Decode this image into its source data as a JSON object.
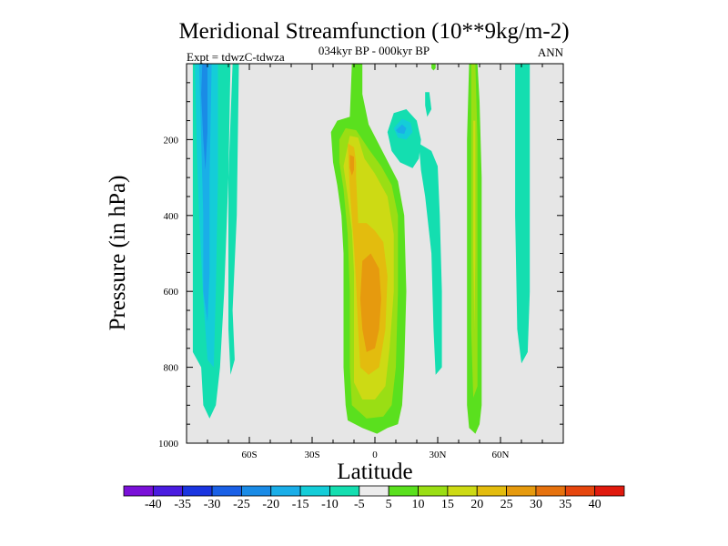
{
  "chart_data": {
    "type": "heatmap",
    "title": "Meridional Streamfunction (10**9kg/m-2)",
    "subtitle": "034kyr BP - 000kyr BP",
    "left_label": "Expt = tdwzC-tdwza",
    "right_label": "ANN",
    "xlabel": "Latitude",
    "ylabel": "Pressure (in hPa)",
    "xlim": [
      -90,
      90
    ],
    "ylim": [
      0,
      1000
    ],
    "x_ticks": [
      {
        "value": -60,
        "label": "60S"
      },
      {
        "value": -30,
        "label": "30S"
      },
      {
        "value": 0,
        "label": "0"
      },
      {
        "value": 30,
        "label": "30N"
      },
      {
        "value": 60,
        "label": "60N"
      }
    ],
    "y_ticks": [
      {
        "value": 200,
        "label": "200"
      },
      {
        "value": 400,
        "label": "400"
      },
      {
        "value": 600,
        "label": "600"
      },
      {
        "value": 800,
        "label": "800"
      },
      {
        "value": 1000,
        "label": "1000"
      }
    ],
    "background_color": "#e6e6e6",
    "colorbar": {
      "labels": [
        "-40",
        "-35",
        "-30",
        "-25",
        "-20",
        "-15",
        "-10",
        "-5",
        "5",
        "10",
        "15",
        "20",
        "25",
        "30",
        "35",
        "40"
      ],
      "colors": [
        "#7a10d8",
        "#4a1ce0",
        "#1a35e0",
        "#1a60e6",
        "#1a8be6",
        "#1aaee8",
        "#14cdd8",
        "#14deb0",
        "#ececec",
        "#5ae01e",
        "#9ade14",
        "#cdda14",
        "#e3bc0e",
        "#e69a0e",
        "#e6720e",
        "#e6460e",
        "#e01a0e"
      ]
    },
    "regions": [
      {
        "name": "sh-polar-cell-outer",
        "level": "-10",
        "color": "#14deb0",
        "points": [
          [
            -87,
            0
          ],
          [
            -69,
            0
          ],
          [
            -70,
            300
          ],
          [
            -72,
            600
          ],
          [
            -74,
            800
          ],
          [
            -76,
            900
          ],
          [
            -79,
            935
          ],
          [
            -82,
            900
          ],
          [
            -83,
            800
          ],
          [
            -87,
            760
          ]
        ]
      },
      {
        "name": "sh-polar-cell-mid",
        "level": "-15",
        "color": "#14cdd8",
        "points": [
          [
            -86,
            0
          ],
          [
            -75,
            0
          ],
          [
            -75,
            300
          ],
          [
            -76,
            600
          ],
          [
            -77,
            800
          ],
          [
            -80,
            780
          ],
          [
            -82,
            620
          ],
          [
            -84,
            400
          ],
          [
            -85,
            250
          ]
        ]
      },
      {
        "name": "sh-polar-cell-inner",
        "level": "-20",
        "color": "#1aaee8",
        "points": [
          [
            -84,
            0
          ],
          [
            -78,
            0
          ],
          [
            -79,
            300
          ],
          [
            -79,
            550
          ],
          [
            -80,
            680
          ],
          [
            -82,
            600
          ],
          [
            -82,
            400
          ],
          [
            -83,
            200
          ]
        ]
      },
      {
        "name": "sh-polar-cell-core",
        "level": "-25",
        "color": "#1a8be6",
        "points": [
          [
            -82.5,
            0
          ],
          [
            -80,
            0
          ],
          [
            -80,
            180
          ],
          [
            -81,
            280
          ],
          [
            -82,
            200
          ],
          [
            -83,
            80
          ]
        ]
      },
      {
        "name": "sh-strip",
        "level": "-10",
        "color": "#14deb0",
        "points": [
          [
            -68,
            0
          ],
          [
            -65,
            0
          ],
          [
            -66,
            400
          ],
          [
            -68,
            650
          ],
          [
            -67,
            780
          ],
          [
            -69,
            820
          ],
          [
            -70,
            700
          ],
          [
            -70,
            300
          ]
        ]
      },
      {
        "name": "tropical-cell-outer",
        "level": "5",
        "color": "#5ae01e",
        "points": [
          [
            -11,
            0
          ],
          [
            -6,
            0
          ],
          [
            -6,
            80
          ],
          [
            -3,
            160
          ],
          [
            4,
            235
          ],
          [
            11,
            310
          ],
          [
            14,
            400
          ],
          [
            15,
            600
          ],
          [
            14,
            800
          ],
          [
            13,
            900
          ],
          [
            11,
            950
          ],
          [
            6,
            960
          ],
          [
            1,
            975
          ],
          [
            -6,
            960
          ],
          [
            -13,
            940
          ],
          [
            -14,
            900
          ],
          [
            -15,
            800
          ],
          [
            -15,
            650
          ],
          [
            -15,
            500
          ],
          [
            -16,
            400
          ],
          [
            -18,
            320
          ],
          [
            -20,
            260
          ],
          [
            -21,
            180
          ],
          [
            -18,
            150
          ],
          [
            -12,
            140
          ]
        ]
      },
      {
        "name": "tropical-cell-10",
        "level": "10",
        "color": "#9ade14",
        "points": [
          [
            -14,
            170
          ],
          [
            -9,
            175
          ],
          [
            -3,
            225
          ],
          [
            3,
            270
          ],
          [
            8,
            320
          ],
          [
            11,
            400
          ],
          [
            11,
            600
          ],
          [
            10,
            800
          ],
          [
            8,
            900
          ],
          [
            4,
            930
          ],
          [
            -4,
            935
          ],
          [
            -11,
            900
          ],
          [
            -12,
            800
          ],
          [
            -12,
            600
          ],
          [
            -13,
            450
          ],
          [
            -15,
            330
          ],
          [
            -17,
            260
          ],
          [
            -17,
            200
          ]
        ]
      },
      {
        "name": "tropical-cell-15",
        "level": "15",
        "color": "#cdda14",
        "points": [
          [
            -12,
            190
          ],
          [
            -8,
            195
          ],
          [
            -5,
            250
          ],
          [
            0,
            290
          ],
          [
            6,
            350
          ],
          [
            9,
            450
          ],
          [
            9,
            600
          ],
          [
            7,
            750
          ],
          [
            5,
            850
          ],
          [
            0,
            885
          ],
          [
            -6,
            885
          ],
          [
            -10,
            840
          ],
          [
            -10,
            700
          ],
          [
            -10,
            550
          ],
          [
            -11,
            440
          ],
          [
            -13,
            350
          ],
          [
            -15,
            270
          ]
        ]
      },
      {
        "name": "tropical-cell-20",
        "level": "20",
        "color": "#e3bc0e",
        "points": [
          [
            -13,
            210
          ],
          [
            -10,
            220
          ],
          [
            -9,
            260
          ],
          [
            -9,
            300
          ],
          [
            -8,
            420
          ],
          [
            -4,
            420
          ],
          [
            0,
            440
          ],
          [
            4,
            470
          ],
          [
            6,
            560
          ],
          [
            5,
            700
          ],
          [
            2,
            800
          ],
          [
            -3,
            820
          ],
          [
            -7,
            800
          ],
          [
            -8,
            700
          ],
          [
            -9,
            580
          ],
          [
            -10,
            480
          ],
          [
            -12,
            330
          ]
        ]
      },
      {
        "name": "tropical-cell-25",
        "level": "25",
        "color": "#e69a0e",
        "points": [
          [
            -6,
            520
          ],
          [
            -2,
            500
          ],
          [
            2,
            540
          ],
          [
            3,
            620
          ],
          [
            2,
            700
          ],
          [
            0,
            750
          ],
          [
            -4,
            760
          ],
          [
            -6,
            700
          ],
          [
            -7,
            620
          ]
        ]
      },
      {
        "name": "tropical-upper-core",
        "level": "25",
        "color": "#e69a0e",
        "points": [
          [
            -12,
            240
          ],
          [
            -10,
            245
          ],
          [
            -10,
            280
          ],
          [
            -11,
            295
          ],
          [
            -12,
            275
          ]
        ]
      },
      {
        "name": "nh-upper-cell-outer",
        "level": "-10",
        "color": "#14deb0",
        "points": [
          [
            6,
            180
          ],
          [
            9,
            130
          ],
          [
            15,
            120
          ],
          [
            20,
            150
          ],
          [
            22,
            200
          ],
          [
            21,
            250
          ],
          [
            18,
            275
          ],
          [
            12,
            260
          ],
          [
            8,
            230
          ]
        ]
      },
      {
        "name": "nh-upper-cell-inner",
        "level": "-15",
        "color": "#14cdd8",
        "points": [
          [
            9,
            170
          ],
          [
            13,
            145
          ],
          [
            17,
            155
          ],
          [
            18,
            180
          ],
          [
            15,
            200
          ],
          [
            11,
            195
          ]
        ]
      },
      {
        "name": "nh-upper-cell-core",
        "level": "-20",
        "color": "#1aaee8",
        "points": [
          [
            10,
            175
          ],
          [
            13,
            160
          ],
          [
            15,
            170
          ],
          [
            14,
            185
          ],
          [
            11,
            182
          ]
        ]
      },
      {
        "name": "nh-strip-mid",
        "level": "-10",
        "color": "#14deb0",
        "points": [
          [
            21,
            210
          ],
          [
            27,
            230
          ],
          [
            30,
            270
          ],
          [
            31,
            400
          ],
          [
            32,
            600
          ],
          [
            32,
            800
          ],
          [
            29,
            820
          ],
          [
            28,
            700
          ],
          [
            27,
            500
          ],
          [
            24,
            350
          ],
          [
            22,
            280
          ]
        ]
      },
      {
        "name": "nh-small-patch",
        "level": "-10",
        "color": "#14deb0",
        "points": [
          [
            24,
            75
          ],
          [
            26,
            75
          ],
          [
            27,
            120
          ],
          [
            25,
            140
          ],
          [
            24,
            110
          ]
        ]
      },
      {
        "name": "nh-cell-outer",
        "level": "5",
        "color": "#5ae01e",
        "points": [
          [
            45,
            0
          ],
          [
            49,
            0
          ],
          [
            50,
            100
          ],
          [
            51,
            300
          ],
          [
            51,
            600
          ],
          [
            51,
            800
          ],
          [
            51,
            900
          ],
          [
            50,
            950
          ],
          [
            48,
            975
          ],
          [
            45,
            960
          ],
          [
            44,
            900
          ],
          [
            44,
            800
          ],
          [
            44,
            500
          ],
          [
            44,
            200
          ]
        ]
      },
      {
        "name": "nh-cell-10",
        "level": "10",
        "color": "#9ade14",
        "points": [
          [
            46,
            0
          ],
          [
            48,
            0
          ],
          [
            49,
            200
          ],
          [
            49,
            600
          ],
          [
            49,
            850
          ],
          [
            47,
            880
          ],
          [
            46,
            700
          ],
          [
            46,
            300
          ]
        ]
      },
      {
        "name": "nh-cell-15",
        "level": "15",
        "color": "#cdda14",
        "points": [
          [
            47,
            150
          ],
          [
            48,
            150
          ],
          [
            48,
            500
          ],
          [
            47.5,
            700
          ],
          [
            47,
            500
          ]
        ]
      },
      {
        "name": "nh-polar-strip",
        "level": "-10",
        "color": "#14deb0",
        "points": [
          [
            67,
            0
          ],
          [
            74,
            0
          ],
          [
            74,
            300
          ],
          [
            74,
            600
          ],
          [
            73,
            760
          ],
          [
            72,
            770
          ],
          [
            70,
            790
          ],
          [
            68,
            700
          ],
          [
            67,
            400
          ]
        ]
      },
      {
        "name": "top-green-spot",
        "level": "5",
        "color": "#5ae01e",
        "points": [
          [
            27,
            0
          ],
          [
            29,
            0
          ],
          [
            29,
            12
          ],
          [
            28,
            18
          ],
          [
            27,
            12
          ]
        ]
      }
    ]
  }
}
